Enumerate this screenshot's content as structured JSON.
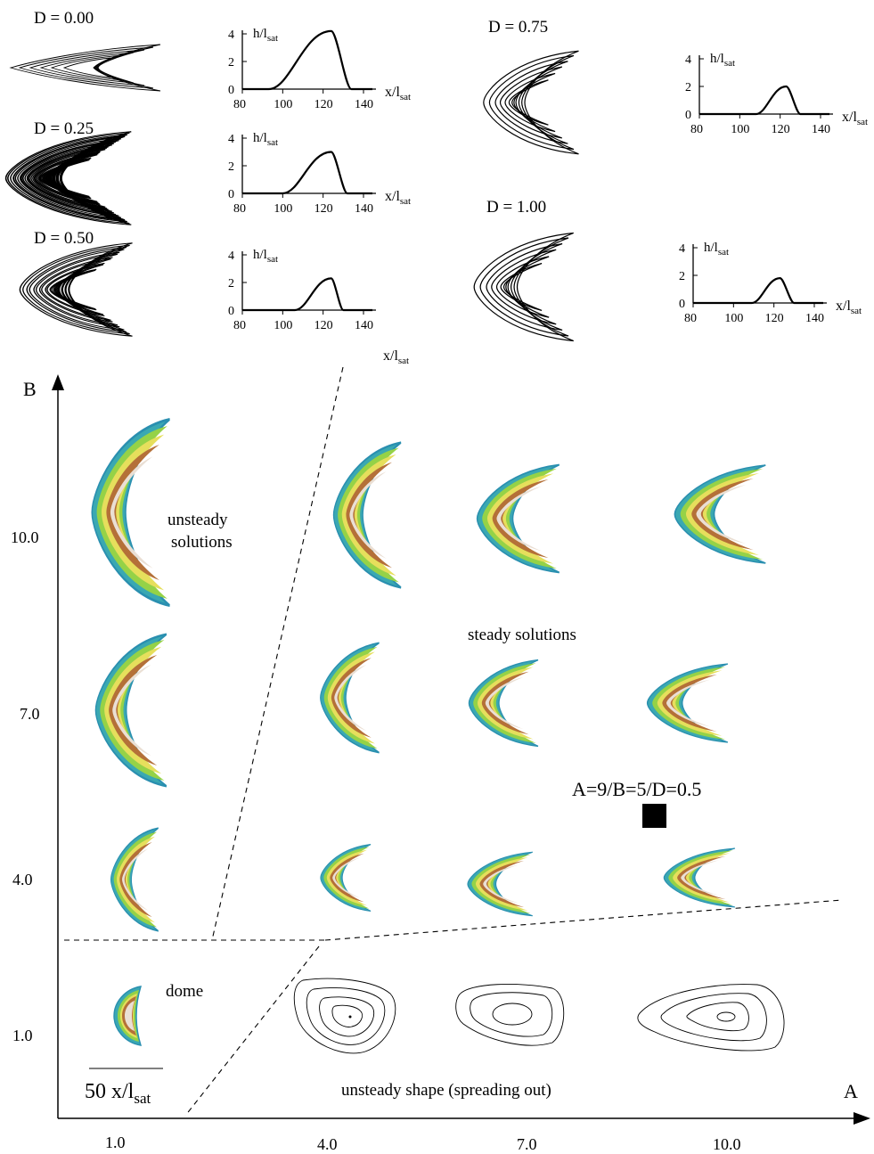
{
  "top_panels": [
    {
      "d_label": "D = 0.00",
      "peak": 4.2,
      "x_start": 93,
      "x_peak": 124,
      "x_end": 134
    },
    {
      "d_label": "D = 0.25",
      "peak": 3.0,
      "x_start": 100,
      "x_peak": 124,
      "x_end": 132
    },
    {
      "d_label": "D = 0.50",
      "peak": 2.3,
      "x_start": 106,
      "x_peak": 124,
      "x_end": 130
    },
    {
      "d_label": "D = 0.75",
      "peak": 2.0,
      "x_start": 108,
      "x_peak": 123,
      "x_end": 130
    },
    {
      "d_label": "D = 1.00",
      "peak": 1.8,
      "x_start": 109,
      "x_peak": 123,
      "x_end": 130
    }
  ],
  "profile_axes": {
    "ylabel_main": "h/l",
    "ylabel_sub": "sat",
    "xlabel_main": "x/l",
    "xlabel_sub": "sat",
    "y_ticks": [
      "0",
      "2",
      "4"
    ],
    "x_ticks": [
      "80",
      "100",
      "120",
      "140"
    ]
  },
  "phase": {
    "x_axis_label": "A",
    "y_axis_label": "B",
    "x_ticks": [
      "1.0",
      "4.0",
      "7.0",
      "10.0"
    ],
    "y_ticks": [
      "1.0",
      "4.0",
      "7.0",
      "10.0"
    ],
    "region_unsteady_line1": "unsteady",
    "region_unsteady_line2": "solutions",
    "region_steady": "steady solutions",
    "region_dome": "dome",
    "region_spreading": "unsteady shape (spreading out)",
    "marker_label": "A=9/B=5/D=0.5",
    "scale_value": "50 x/l",
    "scale_sub": "sat"
  }
}
